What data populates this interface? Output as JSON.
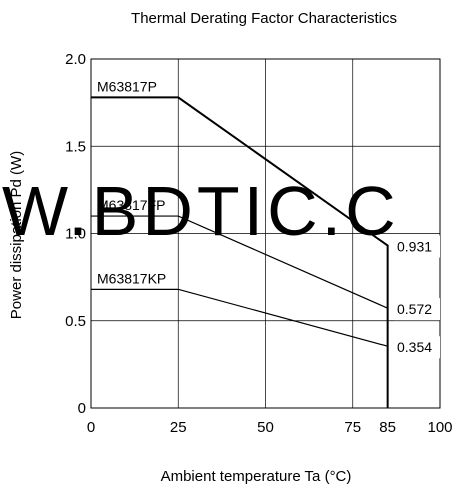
{
  "chart_data": {
    "type": "line",
    "title": "Thermal Derating Factor Characteristics",
    "xlabel": "Ambient temperature  Ta (°C)",
    "ylabel": "Power dissipation  Pd (W)",
    "xlim": [
      0,
      100
    ],
    "ylim": [
      0,
      2.0
    ],
    "x_ticks": [
      0,
      25,
      50,
      75,
      85,
      100
    ],
    "y_ticks": [
      0,
      0.5,
      1.0,
      1.5,
      2.0
    ],
    "y_tick_labels": [
      "0",
      "0.5",
      "1.0",
      "1.5",
      "2.0"
    ],
    "grid": true,
    "series": [
      {
        "name": "M63817P",
        "x": [
          0,
          25,
          85,
          85
        ],
        "y": [
          1.78,
          1.78,
          0.931,
          0
        ]
      },
      {
        "name": "M63817FP",
        "x": [
          0,
          25,
          85
        ],
        "y": [
          1.1,
          1.1,
          0.572
        ]
      },
      {
        "name": "M63817KP",
        "x": [
          0,
          25,
          85
        ],
        "y": [
          0.68,
          0.68,
          0.354
        ]
      }
    ],
    "end_labels": [
      "0.931",
      "0.572",
      "0.354"
    ]
  },
  "watermark": "W.BDTIC.C",
  "colors": {
    "line": "#000000",
    "grid": "#000000",
    "watermark": "#1a10e0"
  }
}
